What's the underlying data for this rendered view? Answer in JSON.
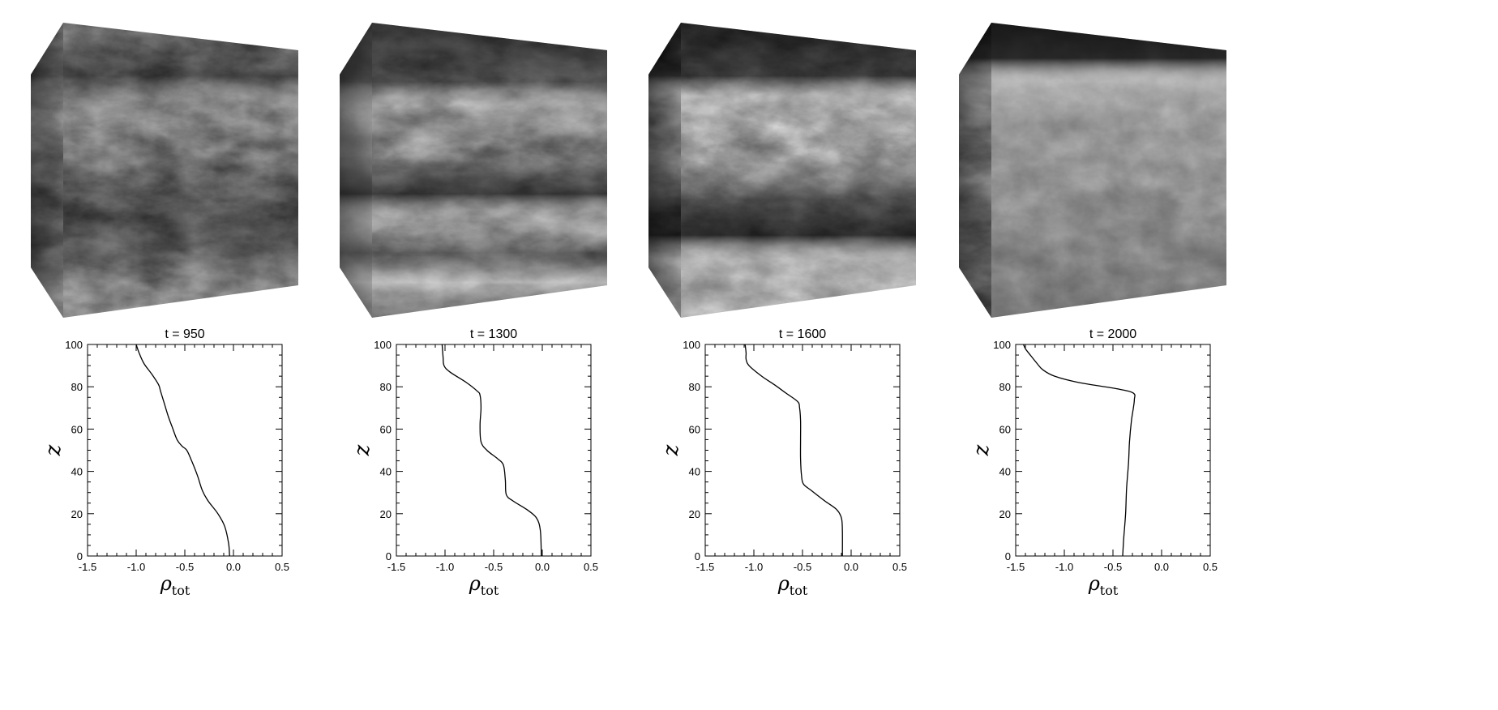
{
  "chart_data": [
    {
      "type": "line",
      "title": "t = 950",
      "xlabel": "ρ_tot",
      "ylabel": "z",
      "xlim": [
        -1.5,
        0.5
      ],
      "ylim": [
        0,
        100
      ],
      "xticks": [
        "-1.5",
        "-1.0",
        "-0.5",
        "0.0",
        "0.5"
      ],
      "yticks": [
        "0",
        "20",
        "40",
        "60",
        "80",
        "100"
      ],
      "series": [
        {
          "x": [
            -0.04,
            -0.05,
            -0.09,
            -0.16,
            -0.26,
            -0.32,
            -0.37,
            -0.43,
            -0.48,
            -0.53,
            -0.58,
            -0.63,
            -0.67,
            -0.71,
            -0.75,
            -0.77,
            -0.84,
            -0.92,
            -0.97,
            -1.0
          ],
          "y": [
            0,
            6,
            14,
            20,
            26,
            31,
            38,
            45,
            50,
            52,
            55,
            61,
            66,
            72,
            78,
            81,
            86,
            91,
            96,
            100
          ]
        }
      ],
      "image": {
        "subject": "3D simulation cube showing turbulent density field in grayscale"
      }
    },
    {
      "type": "line",
      "title": "t = 1300",
      "xlabel": "ρ_tot",
      "ylabel": "z",
      "xlim": [
        -1.5,
        0.5
      ],
      "ylim": [
        0,
        100
      ],
      "xticks": [
        "-1.5",
        "-1.0",
        "-0.5",
        "0.0",
        "0.5"
      ],
      "yticks": [
        "0",
        "20",
        "40",
        "60",
        "80",
        "100"
      ],
      "series": [
        {
          "x": [
            -0.01,
            -0.02,
            -0.06,
            -0.16,
            -0.3,
            -0.37,
            -0.38,
            -0.4,
            -0.46,
            -0.57,
            -0.63,
            -0.64,
            -0.63,
            -0.64,
            -0.67,
            -0.78,
            -0.95,
            -1.01,
            -1.02,
            -1.03
          ],
          "y": [
            0,
            12,
            18,
            22,
            26,
            29,
            36,
            43,
            46,
            50,
            54,
            62,
            70,
            76,
            78,
            82,
            87,
            90,
            94,
            100
          ]
        }
      ],
      "image": {
        "subject": "3D simulation cube showing layered turbulent density structure in grayscale"
      }
    },
    {
      "type": "line",
      "title": "t = 1600",
      "xlabel": "ρ_tot",
      "ylabel": "z",
      "xlim": [
        -1.5,
        0.5
      ],
      "ylim": [
        0,
        100
      ],
      "xticks": [
        "-1.5",
        "-1.0",
        "-0.5",
        "0.0",
        "0.5"
      ],
      "yticks": [
        "0",
        "20",
        "40",
        "60",
        "80",
        "100"
      ],
      "series": [
        {
          "x": [
            -0.09,
            -0.09,
            -0.1,
            -0.15,
            -0.27,
            -0.41,
            -0.49,
            -0.51,
            -0.52,
            -0.52,
            -0.52,
            -0.53,
            -0.55,
            -0.67,
            -0.79,
            -0.92,
            -1.05,
            -1.08,
            -1.08,
            -1.09
          ],
          "y": [
            0,
            12,
            18,
            22,
            26,
            31,
            34,
            38,
            46,
            55,
            64,
            70,
            73,
            77,
            81,
            85,
            90,
            93,
            96,
            100
          ]
        }
      ],
      "image": {
        "subject": "3D simulation cube showing mixed turbulent density layers in grayscale"
      }
    },
    {
      "type": "line",
      "title": "t = 2000",
      "xlabel": "ρ_tot",
      "ylabel": "z",
      "xlim": [
        -1.5,
        0.5
      ],
      "ylim": [
        0,
        100
      ],
      "xticks": [
        "-1.5",
        "-1.0",
        "-0.5",
        "0.0",
        "0.5"
      ],
      "yticks": [
        "0",
        "20",
        "40",
        "60",
        "80",
        "100"
      ],
      "series": [
        {
          "x": [
            -0.4,
            -0.39,
            -0.37,
            -0.36,
            -0.34,
            -0.33,
            -0.31,
            -0.29,
            -0.28,
            -0.29,
            -0.45,
            -0.85,
            -1.1,
            -1.22,
            -1.28,
            -1.35,
            -1.4,
            -1.42
          ],
          "y": [
            0,
            8,
            20,
            32,
            44,
            54,
            64,
            70,
            74,
            77,
            79,
            82,
            85,
            88,
            91,
            95,
            98,
            100
          ]
        }
      ],
      "image": {
        "subject": "3D simulation cube showing well-mixed turbulent density field with dark top layer in grayscale"
      }
    }
  ]
}
